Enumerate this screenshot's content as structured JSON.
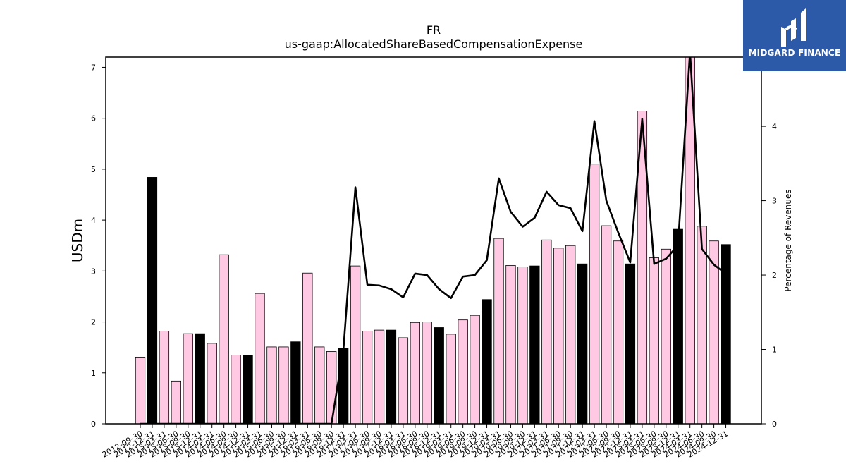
{
  "chart_data": {
    "type": "bar",
    "title": "FR",
    "subtitle": "us-gaap:AllocatedShareBasedCompensationExpense",
    "ylabel": "USDm",
    "ylabel_right": "Percentage of Revenues",
    "ylim": [
      0,
      7.2
    ],
    "ylim_right": [
      0,
      4.93
    ],
    "yticks": [
      0,
      1,
      2,
      3,
      4,
      5,
      6,
      7
    ],
    "yticks_right": [
      0,
      1,
      2,
      3,
      4
    ],
    "categories": [
      "2012-09-30",
      "2012-12-31",
      "2013-03-31",
      "2013-06-30",
      "2013-09-30",
      "2013-12-31",
      "2014-03-31",
      "2014-06-30",
      "2014-09-30",
      "2014-12-31",
      "2015-03-31",
      "2015-06-30",
      "2015-09-30",
      "2015-12-31",
      "2016-03-31",
      "2016-06-30",
      "2016-09-30",
      "2016-12-31",
      "2017-03-31",
      "2017-06-30",
      "2017-09-30",
      "2017-12-31",
      "2018-03-31",
      "2018-06-30",
      "2018-09-30",
      "2018-12-31",
      "2019-03-31",
      "2019-06-30",
      "2019-09-30",
      "2019-12-31",
      "2020-03-31",
      "2020-06-30",
      "2020-09-30",
      "2020-12-31",
      "2021-03-31",
      "2021-06-30",
      "2021-09-30",
      "2021-12-31",
      "2022-03-31",
      "2022-06-30",
      "2022-09-30",
      "2022-12-31",
      "2023-03-31",
      "2023-06-30",
      "2023-09-30",
      "2023-12-31",
      "2024-03-31",
      "2024-06-30",
      "2024-09-30",
      "2024-12-31"
    ],
    "values": [
      1.31,
      4.84,
      1.82,
      0.84,
      1.77,
      1.77,
      1.58,
      3.32,
      1.35,
      1.35,
      2.56,
      1.51,
      1.51,
      1.61,
      2.96,
      1.51,
      1.42,
      1.48,
      3.1,
      1.82,
      1.84,
      1.84,
      1.69,
      1.99,
      2.0,
      1.89,
      1.76,
      2.04,
      2.13,
      2.44,
      3.64,
      3.11,
      3.08,
      3.1,
      3.61,
      3.45,
      3.5,
      3.14,
      5.1,
      3.89,
      3.59,
      3.14,
      6.14,
      3.26,
      3.43,
      3.82,
      7.4,
      3.88,
      3.59,
      3.52
    ],
    "annual": [
      false,
      true,
      false,
      false,
      false,
      true,
      false,
      false,
      false,
      true,
      false,
      false,
      false,
      true,
      false,
      false,
      false,
      true,
      false,
      false,
      false,
      true,
      false,
      false,
      false,
      true,
      false,
      false,
      false,
      true,
      false,
      false,
      false,
      true,
      false,
      false,
      false,
      true,
      false,
      false,
      false,
      true,
      false,
      false,
      false,
      true,
      false,
      false,
      false,
      true
    ],
    "pct_revenue": [
      0,
      0,
      0,
      0,
      0,
      0,
      0,
      0,
      0,
      0,
      0,
      0,
      0,
      0,
      0,
      0,
      0,
      1.0,
      3.18,
      1.87,
      1.86,
      1.81,
      1.7,
      2.02,
      2.0,
      1.81,
      1.69,
      1.98,
      2.0,
      2.2,
      3.3,
      2.85,
      2.65,
      2.77,
      3.12,
      2.94,
      2.9,
      2.59,
      4.07,
      3.0,
      2.57,
      2.17,
      4.1,
      2.15,
      2.22,
      2.4,
      5.0,
      2.35,
      2.14,
      2.02
    ],
    "colors": {
      "quarter_fill": "#ffc9e3",
      "annual_fill": "#000000",
      "line": "#000000"
    }
  },
  "logo": {
    "text": "MIDGARD FINANCE",
    "bg": "#2d5aa8"
  }
}
